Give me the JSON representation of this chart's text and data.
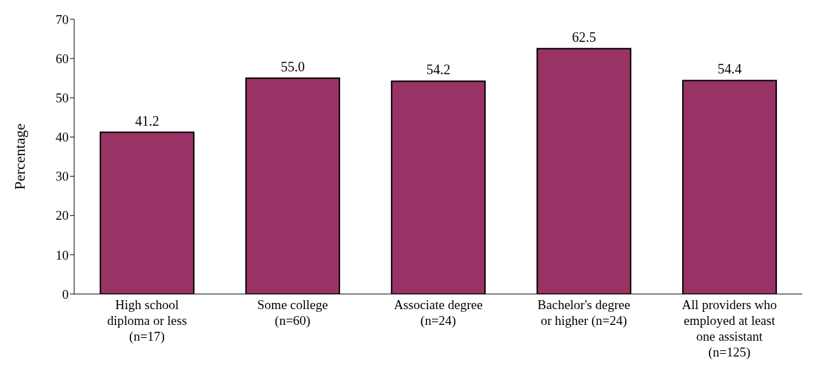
{
  "chart_data": {
    "type": "bar",
    "ylabel": "Percentage",
    "categories": [
      "High school diploma or less (n=17)",
      "Some college (n=60)",
      "Associate degree (n=24)",
      "Bachelor's degree or higher (n=24)",
      "All providers who employed at least one assistant (n=125)"
    ],
    "values": [
      41.2,
      55.0,
      54.2,
      62.5,
      54.4
    ],
    "value_labels": [
      "41.2",
      "55.0",
      "54.2",
      "62.5",
      "54.4"
    ],
    "color": "#993366",
    "ylim": [
      0,
      70
    ],
    "yticks": [
      0,
      10,
      20,
      30,
      40,
      50,
      60,
      70
    ],
    "grid": false,
    "legend": false
  }
}
